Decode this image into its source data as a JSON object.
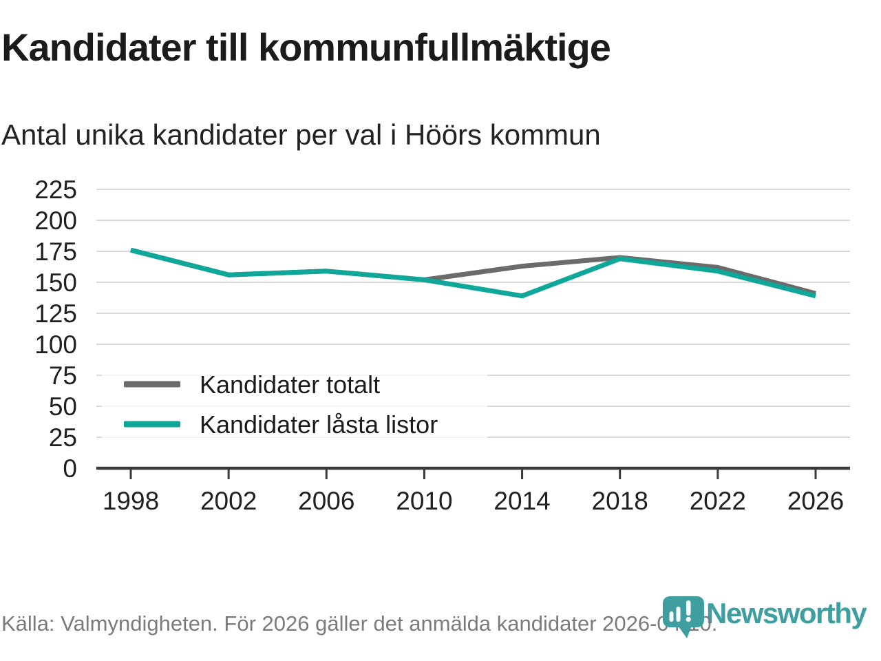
{
  "header": {
    "title": "Kandidater till kommunfullmäktige",
    "subtitle": "Antal unika kandidater per val i Höörs kommun"
  },
  "footer": {
    "source_text": "Källa: Valmyndigheten. För 2026 gäller det anmälda kandidater 2026-04-10."
  },
  "logo": {
    "wordmark": "Newsworthy",
    "icon": "newsworthy-speech-bubble-bar-chart-icon",
    "color": "#3f9fa0"
  },
  "colors": {
    "series_total": "#6b6b6b",
    "series_locked": "#0ea79a",
    "gridline": "#d9d9d9",
    "axis": "#3a3a3a",
    "axis_label": "#1f1f1f",
    "legend_text": "#1b1b1b",
    "footer_text": "#7b7b7b",
    "legend_background": "rgba(255,255,255,0.72)"
  },
  "chart_data": {
    "type": "line",
    "title": "Kandidater till kommunfullmäktige",
    "subtitle": "Antal unika kandidater per val i Höörs kommun",
    "xlabel": "",
    "ylabel": "",
    "categories": [
      1998,
      2002,
      2006,
      2010,
      2014,
      2018,
      2022,
      2026
    ],
    "series": [
      {
        "name": "Kandidater totalt",
        "color": "#6b6b6b",
        "values": [
          176,
          156,
          159,
          152,
          163,
          170,
          162,
          141
        ]
      },
      {
        "name": "Kandidater låsta listor",
        "color": "#0ea79a",
        "values": [
          176,
          156,
          159,
          152,
          139,
          169,
          159,
          139
        ]
      }
    ],
    "ylim": [
      0,
      225
    ],
    "y_ticks": [
      0,
      25,
      50,
      75,
      100,
      125,
      150,
      175,
      200,
      225
    ],
    "grid": true,
    "legend_position": "inside-bottom-left"
  }
}
